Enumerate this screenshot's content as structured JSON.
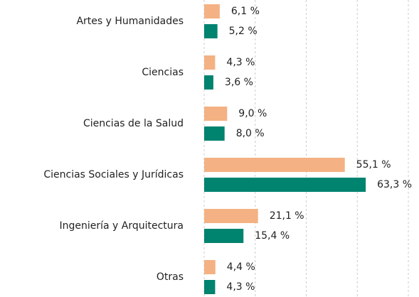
{
  "chart_data": {
    "type": "hbar",
    "categories": [
      "Artes y Humanidades",
      "Ciencias",
      "Ciencias de la Salud",
      "Ciencias Sociales y Jurídicas",
      "Ingeniería y Arquitectura",
      "Otras"
    ],
    "series": [
      {
        "color": "#f4b183",
        "values": [
          6.1,
          4.3,
          9.0,
          55.1,
          21.1,
          4.4
        ],
        "value_labels": [
          "6,1 %",
          "4,3 %",
          "9,0 %",
          "55,1 %",
          "21,1 %",
          "4,4 %"
        ]
      },
      {
        "color": "#00836f",
        "values": [
          5.2,
          3.6,
          8.0,
          63.3,
          15.4,
          4.3
        ],
        "value_labels": [
          "5,2 %",
          "3,6 %",
          "8,0 %",
          "63,3 %",
          "15,4 %",
          "4,3 %"
        ]
      }
    ],
    "xlim": [
      0,
      80
    ],
    "xticks": [
      0,
      20,
      40,
      60,
      80
    ],
    "grid": true
  }
}
